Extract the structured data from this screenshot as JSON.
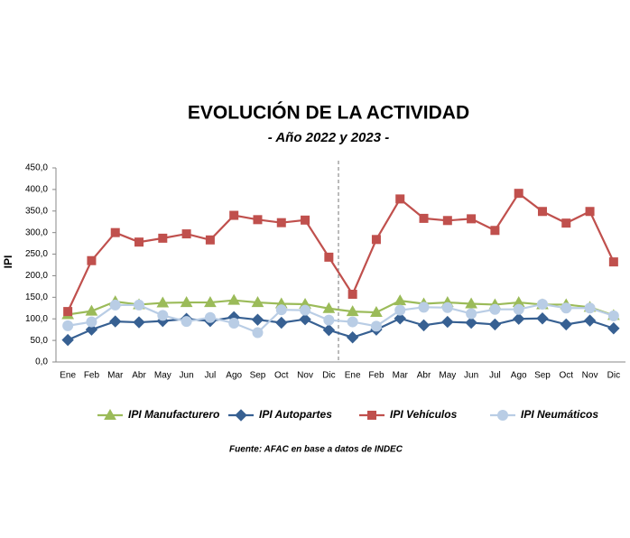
{
  "chart_data": {
    "type": "line",
    "title": "EVOLUCIÓN DE LA ACTIVIDAD",
    "subtitle": "- Año 2022 y 2023 -",
    "y_label": "IPI",
    "source": "Fuente: AFAC en base a datos de INDEC",
    "categories": [
      "Ene",
      "Feb",
      "Mar",
      "Abr",
      "May",
      "Jun",
      "Jul",
      "Ago",
      "Sep",
      "Oct",
      "Nov",
      "Dic",
      "Ene",
      "Feb",
      "Mar",
      "Abr",
      "May",
      "Jun",
      "Jul",
      "Ago",
      "Sep",
      "Oct",
      "Nov",
      "Dic"
    ],
    "ylim": [
      0,
      450
    ],
    "yticks": [
      {
        "value": 0,
        "label": "0,0"
      },
      {
        "value": 50,
        "label": "50,0"
      },
      {
        "value": 100,
        "label": "100,0"
      },
      {
        "value": 150,
        "label": "150,0"
      },
      {
        "value": 200,
        "label": "200,0"
      },
      {
        "value": 250,
        "label": "250,0"
      },
      {
        "value": 300,
        "label": "300,0"
      },
      {
        "value": 350,
        "label": "350,0"
      },
      {
        "value": 400,
        "label": "400,0"
      },
      {
        "value": 450,
        "label": "450,0"
      }
    ],
    "series": [
      {
        "name": "IPI Manufacturero",
        "color": "#9bbb59",
        "marker": "triangle",
        "values": [
          110,
          118,
          140,
          133,
          137,
          138,
          138,
          143,
          138,
          135,
          134,
          124,
          117,
          115,
          142,
          135,
          138,
          135,
          133,
          138,
          133,
          133,
          127,
          108
        ]
      },
      {
        "name": "IPI Autopartes",
        "color": "#376092",
        "marker": "diamond",
        "values": [
          51,
          75,
          94,
          92,
          95,
          100,
          95,
          104,
          98,
          91,
          99,
          74,
          57,
          75,
          101,
          85,
          93,
          91,
          87,
          100,
          101,
          87,
          96,
          78
        ]
      },
      {
        "name": "IPI Vehículos",
        "color": "#c0504d",
        "marker": "square",
        "values": [
          117,
          235,
          300,
          278,
          287,
          297,
          283,
          340,
          330,
          323,
          329,
          243,
          157,
          284,
          378,
          333,
          328,
          332,
          305,
          391,
          349,
          322,
          349,
          232
        ]
      },
      {
        "name": "IPI Neumáticos",
        "color": "#b9cde5",
        "marker": "circle",
        "values": [
          84,
          93,
          132,
          132,
          108,
          94,
          103,
          90,
          68,
          121,
          120,
          97,
          93,
          83,
          120,
          127,
          126,
          112,
          122,
          122,
          134,
          125,
          125,
          107
        ]
      }
    ]
  }
}
